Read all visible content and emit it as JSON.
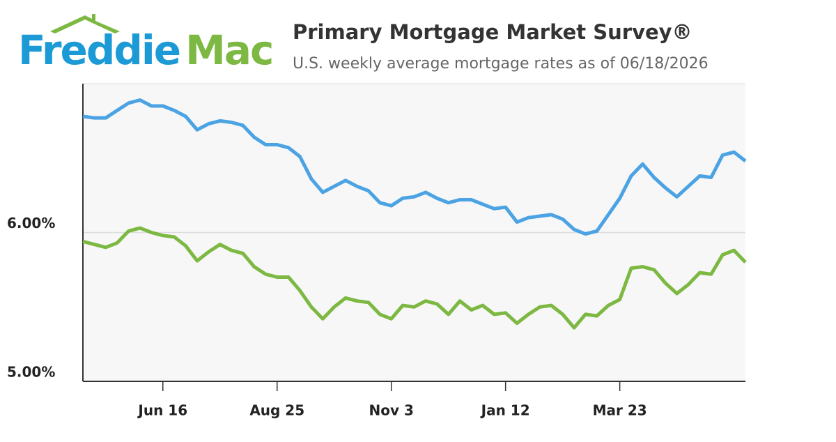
{
  "logo": [
    "Freddie",
    "Mac"
  ],
  "chart_data": {
    "type": "line",
    "title": "Primary Mortgage Market Survey®",
    "subtitle": "U.S. weekly average mortgage rates as of 06/18/2026",
    "categories": [
      null,
      null,
      null,
      null,
      null,
      null,
      null,
      "Jun 16",
      null,
      null,
      null,
      null,
      null,
      null,
      null,
      null,
      null,
      "Aug 25",
      null,
      null,
      null,
      null,
      null,
      null,
      null,
      null,
      null,
      "Nov 3",
      null,
      null,
      null,
      null,
      null,
      null,
      null,
      null,
      null,
      "Jan 12",
      null,
      null,
      null,
      null,
      null,
      null,
      null,
      null,
      null,
      "Mar 23",
      null,
      null,
      null,
      null,
      null,
      null,
      null,
      null,
      null,
      null,
      null
    ],
    "series": [
      {
        "color": "#4ba3e3",
        "values": [
          6.78,
          6.77,
          6.77,
          6.82,
          6.87,
          6.89,
          6.85,
          6.85,
          6.82,
          6.78,
          6.69,
          6.73,
          6.75,
          6.74,
          6.72,
          6.64,
          6.59,
          6.59,
          6.57,
          6.51,
          6.36,
          6.27,
          6.31,
          6.35,
          6.31,
          6.28,
          6.2,
          6.18,
          6.23,
          6.24,
          6.27,
          6.23,
          6.2,
          6.22,
          6.22,
          6.19,
          6.16,
          6.17,
          6.07,
          6.1,
          6.11,
          6.12,
          6.09,
          6.02,
          5.99,
          6.01,
          6.12,
          6.23,
          6.38,
          6.46,
          6.37,
          6.3,
          6.24,
          6.31,
          6.38,
          6.37,
          6.52,
          6.54,
          6.48
        ]
      },
      {
        "color": "#7cb842",
        "values": [
          5.94,
          5.92,
          5.9,
          5.93,
          6.01,
          6.03,
          6.0,
          5.98,
          5.97,
          5.91,
          5.81,
          5.87,
          5.92,
          5.88,
          5.86,
          5.77,
          5.72,
          5.7,
          5.7,
          5.61,
          5.5,
          5.42,
          5.5,
          5.56,
          5.54,
          5.53,
          5.45,
          5.42,
          5.51,
          5.5,
          5.54,
          5.52,
          5.45,
          5.54,
          5.48,
          5.51,
          5.45,
          5.46,
          5.39,
          5.45,
          5.5,
          5.51,
          5.45,
          5.36,
          5.45,
          5.44,
          5.51,
          5.55,
          5.76,
          5.77,
          5.75,
          5.66,
          5.59,
          5.65,
          5.73,
          5.72,
          5.85,
          5.88,
          5.8
        ]
      }
    ],
    "ylim": [
      5,
      7
    ],
    "yticks": [
      {
        "value": 5,
        "label": "5.00%"
      },
      {
        "value": 6,
        "label": "6.00%"
      }
    ],
    "grid": true
  }
}
